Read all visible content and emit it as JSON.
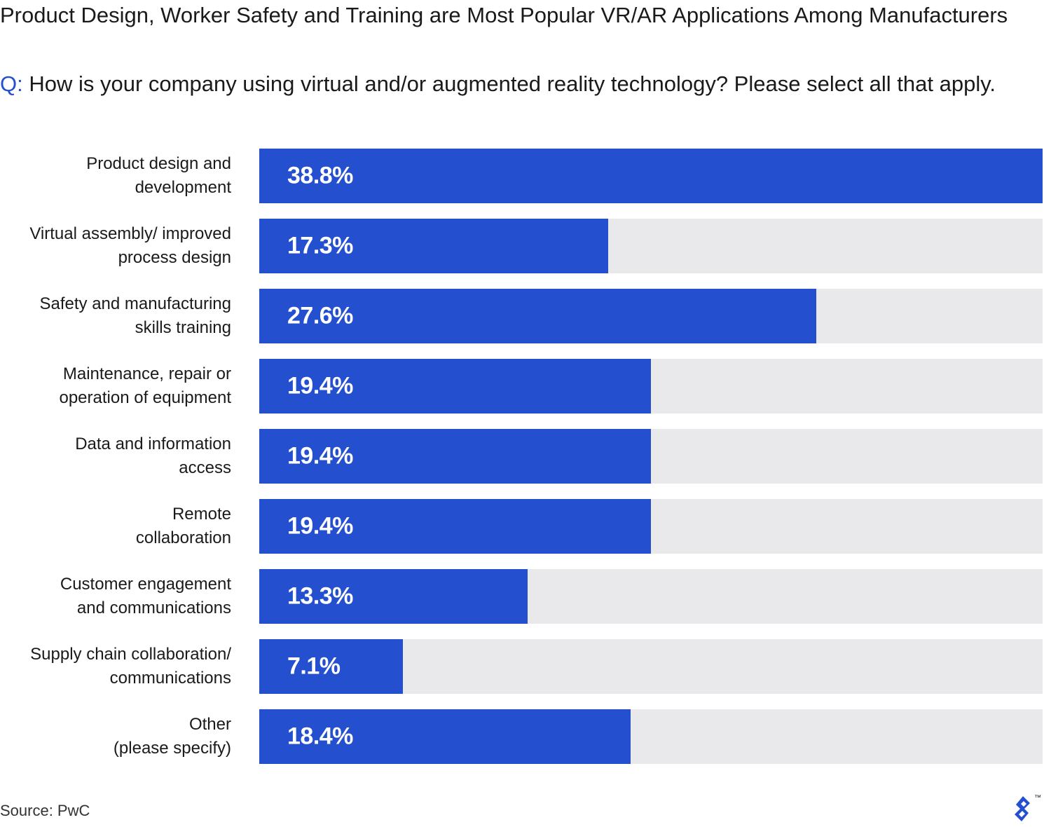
{
  "title": "Product Design, Worker Safety and Training are Most Popular VR/AR Applications Among Manufacturers",
  "question": {
    "prefix": "Q:",
    "text": "How is your company using virtual and/or augmented reality technology? Please select all that apply."
  },
  "colors": {
    "bar": "#2450d0",
    "track": "#e9e9eb",
    "accent": "#2450d0"
  },
  "chart_data": {
    "type": "bar",
    "orientation": "horizontal",
    "title": "Product Design, Worker Safety and Training are Most Popular VR/AR Applications Among Manufacturers",
    "categories": [
      "Product design and\ndevelopment",
      "Virtual assembly/ improved\nprocess design",
      "Safety and manufacturing\nskills training",
      "Maintenance, repair or\noperation of equipment",
      "Data and information\naccess",
      "Remote\ncollaboration",
      "Customer engagement\nand communications",
      "Supply chain collaboration/\ncommunications",
      "Other\n(please specify)"
    ],
    "values": [
      38.8,
      17.3,
      27.6,
      19.4,
      19.4,
      19.4,
      13.3,
      7.1,
      18.4
    ],
    "value_labels": [
      "38.8%",
      "17.3%",
      "27.6%",
      "19.4%",
      "19.4%",
      "19.4%",
      "13.3%",
      "7.1%",
      "18.4%"
    ],
    "xlim": [
      0,
      38.8
    ],
    "grid": false
  },
  "source": "Source: PwC",
  "logo_icon": "toptal-logo-icon"
}
